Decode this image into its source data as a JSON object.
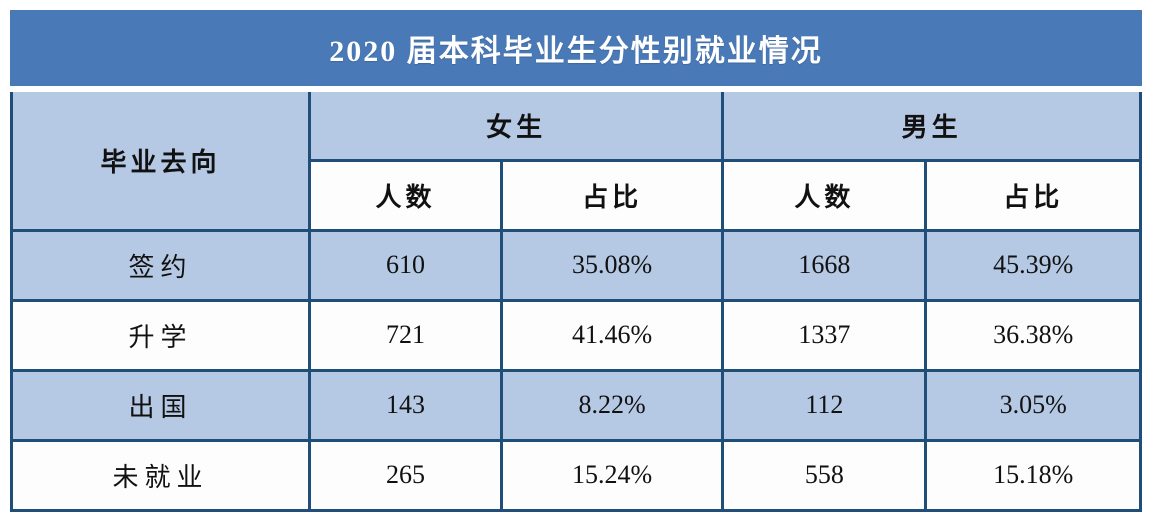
{
  "title": "2020 届本科毕业生分性别就业情况",
  "table": {
    "dest_header": "毕业去向",
    "group_headers": {
      "female": "女生",
      "male": "男生"
    },
    "sub_headers": {
      "count": "人数",
      "ratio": "占比"
    },
    "rows": [
      {
        "label": "签约",
        "f_count": "610",
        "f_pct": "35.08%",
        "m_count": "1668",
        "m_pct": "45.39%"
      },
      {
        "label": "升学",
        "f_count": "721",
        "f_pct": "41.46%",
        "m_count": "1337",
        "m_pct": "36.38%"
      },
      {
        "label": "出国",
        "f_count": "143",
        "f_pct": "8.22%",
        "m_count": "112",
        "m_pct": "3.05%"
      },
      {
        "label": "未就业",
        "f_count": "265",
        "f_pct": "15.24%",
        "m_count": "558",
        "m_pct": "15.18%"
      }
    ]
  },
  "colors": {
    "title_bar": "#4a79b8",
    "cell_blue": "#b6c9e4",
    "cell_white": "#fdfdfe",
    "border": "#1f4e79",
    "title_text": "#ffffff",
    "body_text": "#111111"
  }
}
